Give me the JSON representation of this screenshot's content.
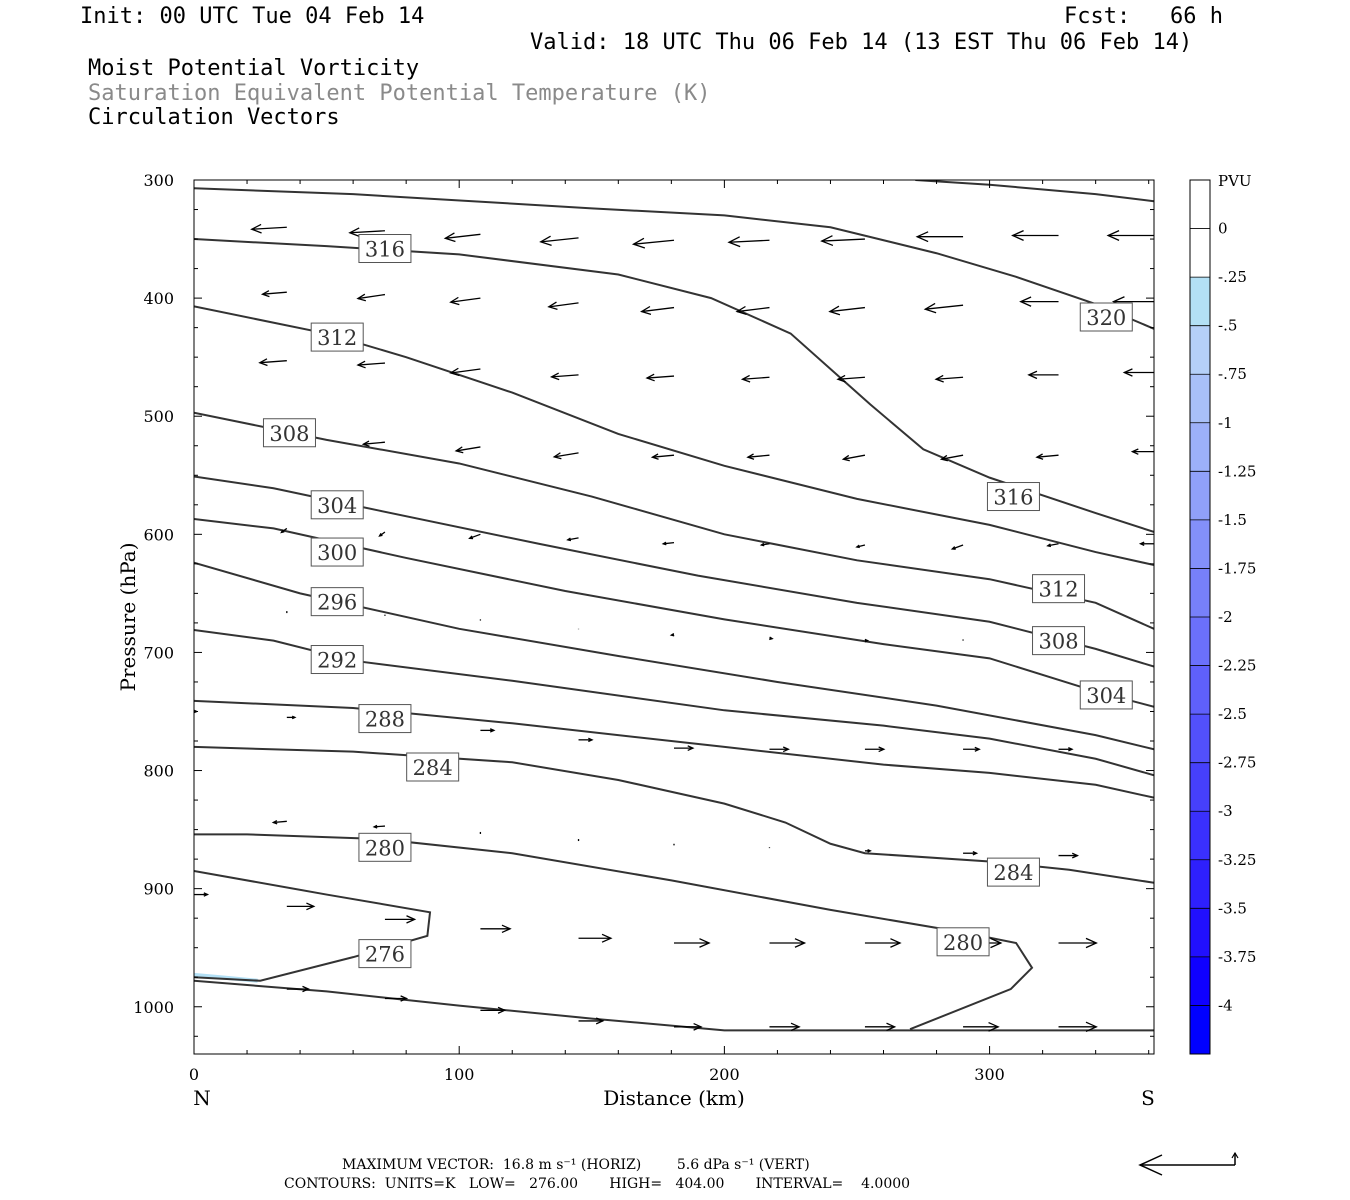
{
  "header": {
    "init": "Init: 00 UTC Tue 04 Feb 14",
    "fcst": "Fcst:   66 h",
    "valid": "Valid: 18 UTC Thu 06 Feb 14 (13 EST Thu 06 Feb 14)",
    "title1": "Moist Potential Vorticity",
    "title2": "Saturation Equivalent Potential Temperature (K)",
    "title3": "Circulation Vectors"
  },
  "footer": {
    "max_vector": "MAXIMUM VECTOR:  16.8 m s⁻¹ (HORIZ)        5.6 dPa s⁻¹ (VERT)",
    "contours": "CONTOURS:  UNITS=K   LOW=   276.00       HIGH=   404.00       INTERVAL=    4.0000"
  },
  "colors": {
    "contour": "#333333",
    "mpv_light": "#b3e0f5"
  },
  "chart_data": {
    "type": "cross-section",
    "xlabel": "Distance (km)",
    "ylabel": "Pressure (hPa)",
    "xlim": [
      0,
      362
    ],
    "ylim": [
      1040,
      300
    ],
    "xticks": [
      0,
      100,
      200,
      300
    ],
    "yticks": [
      300,
      400,
      500,
      600,
      700,
      800,
      900,
      1000
    ],
    "end_labels": {
      "left": "N",
      "right": "S"
    },
    "colorbar": {
      "title": "PVU",
      "levels": [
        "0",
        "-.25",
        "-.5",
        "-.75",
        "-1",
        "-1.25",
        "-1.5",
        "-1.75",
        "-2",
        "-2.25",
        "-2.5",
        "-2.75",
        "-3",
        "-3.25",
        "-3.5",
        "-3.75",
        "-4"
      ],
      "colors": [
        "#ffffff",
        "#ffffff",
        "#b3e0f5",
        "#b5d0f8",
        "#a8c0f8",
        "#9cb0f9",
        "#90a0f9",
        "#8390fa",
        "#7780fa",
        "#6b70fb",
        "#5f60fb",
        "#5250fc",
        "#4640fc",
        "#3a30fd",
        "#2e20fd",
        "#2110fe",
        "#0f00ff",
        "#0000ff"
      ]
    },
    "contours": [
      {
        "level": 276,
        "points": [
          [
            0,
            975
          ],
          [
            25,
            978
          ],
          [
            60,
            958
          ],
          [
            88,
            940
          ],
          [
            89,
            920
          ],
          [
            50,
            905
          ],
          [
            0,
            885
          ]
        ]
      },
      {
        "level": 280,
        "points": [
          [
            0,
            854
          ],
          [
            20,
            854
          ],
          [
            70,
            858
          ],
          [
            120,
            870
          ],
          [
            180,
            893
          ],
          [
            240,
            918
          ],
          [
            290,
            937
          ],
          [
            310,
            946
          ],
          [
            316,
            967
          ],
          [
            308,
            985
          ],
          [
            270,
            1019
          ]
        ]
      },
      {
        "level": 284,
        "points": [
          [
            0,
            780
          ],
          [
            60,
            784
          ],
          [
            120,
            793
          ],
          [
            160,
            808
          ],
          [
            200,
            828
          ],
          [
            223,
            844
          ],
          [
            240,
            862
          ],
          [
            253,
            870
          ],
          [
            300,
            877
          ],
          [
            330,
            884
          ],
          [
            362,
            895
          ]
        ]
      },
      {
        "level": 288,
        "points": [
          [
            0,
            741
          ],
          [
            60,
            747
          ],
          [
            120,
            760
          ],
          [
            200,
            780
          ],
          [
            260,
            795
          ],
          [
            300,
            802
          ],
          [
            340,
            812
          ],
          [
            362,
            823
          ]
        ]
      },
      {
        "level": 292,
        "points": [
          [
            0,
            681
          ],
          [
            30,
            690
          ],
          [
            60,
            707
          ],
          [
            120,
            724
          ],
          [
            200,
            749
          ],
          [
            260,
            762
          ],
          [
            300,
            773
          ],
          [
            340,
            790
          ],
          [
            362,
            804
          ]
        ]
      },
      {
        "level": 296,
        "points": [
          [
            0,
            624
          ],
          [
            40,
            650
          ],
          [
            100,
            680
          ],
          [
            160,
            703
          ],
          [
            220,
            725
          ],
          [
            280,
            745
          ],
          [
            340,
            770
          ],
          [
            362,
            782
          ]
        ]
      },
      {
        "level": 300,
        "points": [
          [
            0,
            587
          ],
          [
            30,
            595
          ],
          [
            80,
            620
          ],
          [
            140,
            648
          ],
          [
            200,
            672
          ],
          [
            260,
            693
          ],
          [
            300,
            705
          ],
          [
            340,
            733
          ],
          [
            362,
            746
          ]
        ]
      },
      {
        "level": 304,
        "points": [
          [
            0,
            551
          ],
          [
            30,
            561
          ],
          [
            70,
            580
          ],
          [
            130,
            608
          ],
          [
            190,
            635
          ],
          [
            250,
            658
          ],
          [
            300,
            674
          ],
          [
            340,
            697
          ],
          [
            362,
            712
          ]
        ]
      },
      {
        "level": 308,
        "points": [
          [
            0,
            497
          ],
          [
            50,
            520
          ],
          [
            100,
            540
          ],
          [
            150,
            568
          ],
          [
            200,
            600
          ],
          [
            250,
            622
          ],
          [
            300,
            638
          ],
          [
            340,
            658
          ],
          [
            362,
            680
          ]
        ]
      },
      {
        "level": 312,
        "points": [
          [
            0,
            407
          ],
          [
            50,
            430
          ],
          [
            80,
            450
          ],
          [
            120,
            480
          ],
          [
            160,
            515
          ],
          [
            200,
            542
          ],
          [
            250,
            570
          ],
          [
            300,
            592
          ],
          [
            340,
            615
          ],
          [
            362,
            626
          ]
        ]
      },
      {
        "level": 316,
        "points": [
          [
            0,
            350
          ],
          [
            50,
            356
          ],
          [
            100,
            363
          ],
          [
            160,
            380
          ],
          [
            195,
            400
          ],
          [
            225,
            430
          ],
          [
            255,
            490
          ],
          [
            275,
            528
          ],
          [
            300,
            552
          ],
          [
            340,
            582
          ],
          [
            362,
            598
          ]
        ]
      },
      {
        "level": 320,
        "points": [
          [
            0,
            307
          ],
          [
            60,
            312
          ],
          [
            150,
            324
          ],
          [
            200,
            330
          ],
          [
            240,
            340
          ],
          [
            280,
            362
          ],
          [
            310,
            382
          ],
          [
            340,
            405
          ],
          [
            362,
            426
          ]
        ]
      },
      {
        "level": 324,
        "points": [
          [
            272,
            300
          ],
          [
            300,
            304
          ],
          [
            340,
            312
          ],
          [
            362,
            318
          ]
        ]
      }
    ],
    "surface": [
      [
        0,
        978
      ],
      [
        50,
        987
      ],
      [
        100,
        999
      ],
      [
        150,
        1010
      ],
      [
        200,
        1020
      ],
      [
        362,
        1020
      ]
    ],
    "mpv_shading": [
      {
        "value": -0.25,
        "points": [
          [
            0,
            973
          ],
          [
            10,
            975
          ],
          [
            24,
            978
          ]
        ]
      }
    ],
    "contour_labels": [
      {
        "text": "316",
        "x": 72,
        "p": 358
      },
      {
        "text": "320",
        "x": 344,
        "p": 416
      },
      {
        "text": "312",
        "x": 54,
        "p": 433
      },
      {
        "text": "308",
        "x": 36,
        "p": 514
      },
      {
        "text": "316",
        "x": 309,
        "p": 568
      },
      {
        "text": "304",
        "x": 54,
        "p": 575
      },
      {
        "text": "300",
        "x": 54,
        "p": 615
      },
      {
        "text": "312",
        "x": 326,
        "p": 646
      },
      {
        "text": "296",
        "x": 54,
        "p": 657
      },
      {
        "text": "308",
        "x": 326,
        "p": 690
      },
      {
        "text": "292",
        "x": 54,
        "p": 706
      },
      {
        "text": "304",
        "x": 344,
        "p": 736
      },
      {
        "text": "288",
        "x": 72,
        "p": 756
      },
      {
        "text": "284",
        "x": 90,
        "p": 797
      },
      {
        "text": "280",
        "x": 72,
        "p": 865
      },
      {
        "text": "284",
        "x": 309,
        "p": 886
      },
      {
        "text": "280",
        "x": 290,
        "p": 945
      },
      {
        "text": "276",
        "x": 72,
        "p": 955
      }
    ],
    "vectors": [
      {
        "x": 35,
        "p": 340,
        "u": -13,
        "w": 0.5
      },
      {
        "x": 72,
        "p": 343,
        "u": -13,
        "w": 0.5
      },
      {
        "x": 108,
        "p": 346,
        "u": -13,
        "w": 1
      },
      {
        "x": 145,
        "p": 349,
        "u": -14,
        "w": 1
      },
      {
        "x": 181,
        "p": 351,
        "u": -15,
        "w": 1
      },
      {
        "x": 217,
        "p": 351,
        "u": -15,
        "w": 0.5
      },
      {
        "x": 253,
        "p": 350,
        "u": -16,
        "w": 0.5
      },
      {
        "x": 290,
        "p": 348,
        "u": -17,
        "w": 0
      },
      {
        "x": 326,
        "p": 347,
        "u": -17,
        "w": 0
      },
      {
        "x": 362,
        "p": 347,
        "u": -17,
        "w": 0
      },
      {
        "x": 35,
        "p": 395,
        "u": -9,
        "w": 0.5
      },
      {
        "x": 72,
        "p": 397,
        "u": -10,
        "w": 1
      },
      {
        "x": 108,
        "p": 400,
        "u": -11,
        "w": 1
      },
      {
        "x": 145,
        "p": 404,
        "u": -11,
        "w": 1
      },
      {
        "x": 181,
        "p": 408,
        "u": -12,
        "w": 1
      },
      {
        "x": 217,
        "p": 408,
        "u": -12,
        "w": 1
      },
      {
        "x": 253,
        "p": 408,
        "u": -13,
        "w": 1
      },
      {
        "x": 290,
        "p": 406,
        "u": -14,
        "w": 1
      },
      {
        "x": 326,
        "p": 403,
        "u": -14,
        "w": 0
      },
      {
        "x": 362,
        "p": 403,
        "u": -15,
        "w": 0
      },
      {
        "x": 35,
        "p": 453,
        "u": -10,
        "w": 0.5
      },
      {
        "x": 72,
        "p": 455,
        "u": -10,
        "w": 0.5
      },
      {
        "x": 108,
        "p": 460,
        "u": -11,
        "w": 1
      },
      {
        "x": 145,
        "p": 465,
        "u": -10,
        "w": 0.5
      },
      {
        "x": 181,
        "p": 466,
        "u": -10,
        "w": 0.5
      },
      {
        "x": 217,
        "p": 467,
        "u": -10,
        "w": 0.5
      },
      {
        "x": 253,
        "p": 467,
        "u": -10,
        "w": 0.5
      },
      {
        "x": 290,
        "p": 467,
        "u": -10,
        "w": 0.5
      },
      {
        "x": 326,
        "p": 465,
        "u": -11,
        "w": 0
      },
      {
        "x": 362,
        "p": 463,
        "u": -11,
        "w": 0
      },
      {
        "x": 72,
        "p": 522,
        "u": -8,
        "w": 0.5
      },
      {
        "x": 108,
        "p": 526,
        "u": -9,
        "w": 1
      },
      {
        "x": 145,
        "p": 531,
        "u": -9,
        "w": 1
      },
      {
        "x": 181,
        "p": 533,
        "u": -8,
        "w": 0.5
      },
      {
        "x": 217,
        "p": 533,
        "u": -8,
        "w": 0.5
      },
      {
        "x": 253,
        "p": 533,
        "u": -8,
        "w": 1
      },
      {
        "x": 290,
        "p": 533,
        "u": -8,
        "w": 1
      },
      {
        "x": 326,
        "p": 533,
        "u": -8,
        "w": 0.5
      },
      {
        "x": 362,
        "p": 530,
        "u": -8,
        "w": 0
      },
      {
        "x": 35,
        "p": 595,
        "u": -2,
        "w": 1
      },
      {
        "x": 72,
        "p": 598,
        "u": -2,
        "w": 1
      },
      {
        "x": 108,
        "p": 600,
        "u": -4,
        "w": 1
      },
      {
        "x": 145,
        "p": 603,
        "u": -4,
        "w": 0.5
      },
      {
        "x": 181,
        "p": 607,
        "u": -4,
        "w": 0.3
      },
      {
        "x": 217,
        "p": 608,
        "u": -3,
        "w": 0.3
      },
      {
        "x": 253,
        "p": 609,
        "u": -3,
        "w": 0.5
      },
      {
        "x": 290,
        "p": 609,
        "u": -4,
        "w": 1
      },
      {
        "x": 326,
        "p": 608,
        "u": -4,
        "w": 0.5
      },
      {
        "x": 362,
        "p": 608,
        "u": -5,
        "w": 0
      },
      {
        "x": 35,
        "p": 665,
        "u": 0,
        "w": 0.5
      },
      {
        "x": 72,
        "p": 668,
        "u": 0,
        "w": 0.3
      },
      {
        "x": 108,
        "p": 672,
        "u": 0,
        "w": 0.3
      },
      {
        "x": 145,
        "p": 680,
        "u": 0,
        "w": 0.1
      },
      {
        "x": 181,
        "p": 685,
        "u": -1,
        "w": 0.1
      },
      {
        "x": 217,
        "p": 688,
        "u": 1,
        "w": 0.1
      },
      {
        "x": 253,
        "p": 690,
        "u": 1,
        "w": 0
      },
      {
        "x": 290,
        "p": 690,
        "u": 0,
        "w": -0.3
      },
      {
        "x": 326,
        "p": 692,
        "u": 0,
        "w": -0.3
      },
      {
        "x": 0,
        "p": 750,
        "u": 1,
        "w": 0
      },
      {
        "x": 35,
        "p": 755,
        "u": 3,
        "w": 0
      },
      {
        "x": 72,
        "p": 760,
        "u": 4,
        "w": 0
      },
      {
        "x": 108,
        "p": 766,
        "u": 5,
        "w": 0
      },
      {
        "x": 145,
        "p": 774,
        "u": 5,
        "w": 0
      },
      {
        "x": 181,
        "p": 781,
        "u": 7,
        "w": 0
      },
      {
        "x": 217,
        "p": 782,
        "u": 7,
        "w": 0
      },
      {
        "x": 253,
        "p": 782,
        "u": 7,
        "w": 0
      },
      {
        "x": 290,
        "p": 782,
        "u": 6,
        "w": 0
      },
      {
        "x": 326,
        "p": 782,
        "u": 5,
        "w": 0
      },
      {
        "x": 35,
        "p": 843,
        "u": -5,
        "w": 0.3
      },
      {
        "x": 72,
        "p": 847,
        "u": -4,
        "w": 0.2
      },
      {
        "x": 108,
        "p": 852,
        "u": 0,
        "w": 0.5
      },
      {
        "x": 145,
        "p": 858,
        "u": 0,
        "w": 0.5
      },
      {
        "x": 181,
        "p": 862,
        "u": 0,
        "w": 0.4
      },
      {
        "x": 217,
        "p": 865,
        "u": 0,
        "w": 0.2
      },
      {
        "x": 253,
        "p": 868,
        "u": 2,
        "w": 0
      },
      {
        "x": 290,
        "p": 870,
        "u": 5,
        "w": 0
      },
      {
        "x": 326,
        "p": 872,
        "u": 7,
        "w": 0
      },
      {
        "x": 0,
        "p": 905,
        "u": 5,
        "w": 0
      },
      {
        "x": 35,
        "p": 915,
        "u": 10,
        "w": 0
      },
      {
        "x": 72,
        "p": 926,
        "u": 11,
        "w": 0
      },
      {
        "x": 108,
        "p": 934,
        "u": 11,
        "w": 0
      },
      {
        "x": 145,
        "p": 942,
        "u": 12,
        "w": 0
      },
      {
        "x": 181,
        "p": 946,
        "u": 13,
        "w": 0
      },
      {
        "x": 217,
        "p": 946,
        "u": 13,
        "w": 0
      },
      {
        "x": 253,
        "p": 946,
        "u": 13,
        "w": 0
      },
      {
        "x": 290,
        "p": 946,
        "u": 14,
        "w": 0
      },
      {
        "x": 326,
        "p": 946,
        "u": 14,
        "w": 0
      },
      {
        "x": 35,
        "p": 985,
        "u": 8,
        "w": 0
      },
      {
        "x": 72,
        "p": 993,
        "u": 8,
        "w": 0
      },
      {
        "x": 108,
        "p": 1003,
        "u": 9,
        "w": 0
      },
      {
        "x": 145,
        "p": 1012,
        "u": 9,
        "w": 0
      },
      {
        "x": 181,
        "p": 1017,
        "u": 10,
        "w": 0
      },
      {
        "x": 217,
        "p": 1017,
        "u": 11,
        "w": 0
      },
      {
        "x": 253,
        "p": 1017,
        "u": 11,
        "w": 0
      },
      {
        "x": 290,
        "p": 1017,
        "u": 13,
        "w": 0
      },
      {
        "x": 326,
        "p": 1017,
        "u": 14,
        "w": 0
      }
    ],
    "reference_vector": {
      "u": -16.8,
      "w": 5.6
    }
  }
}
